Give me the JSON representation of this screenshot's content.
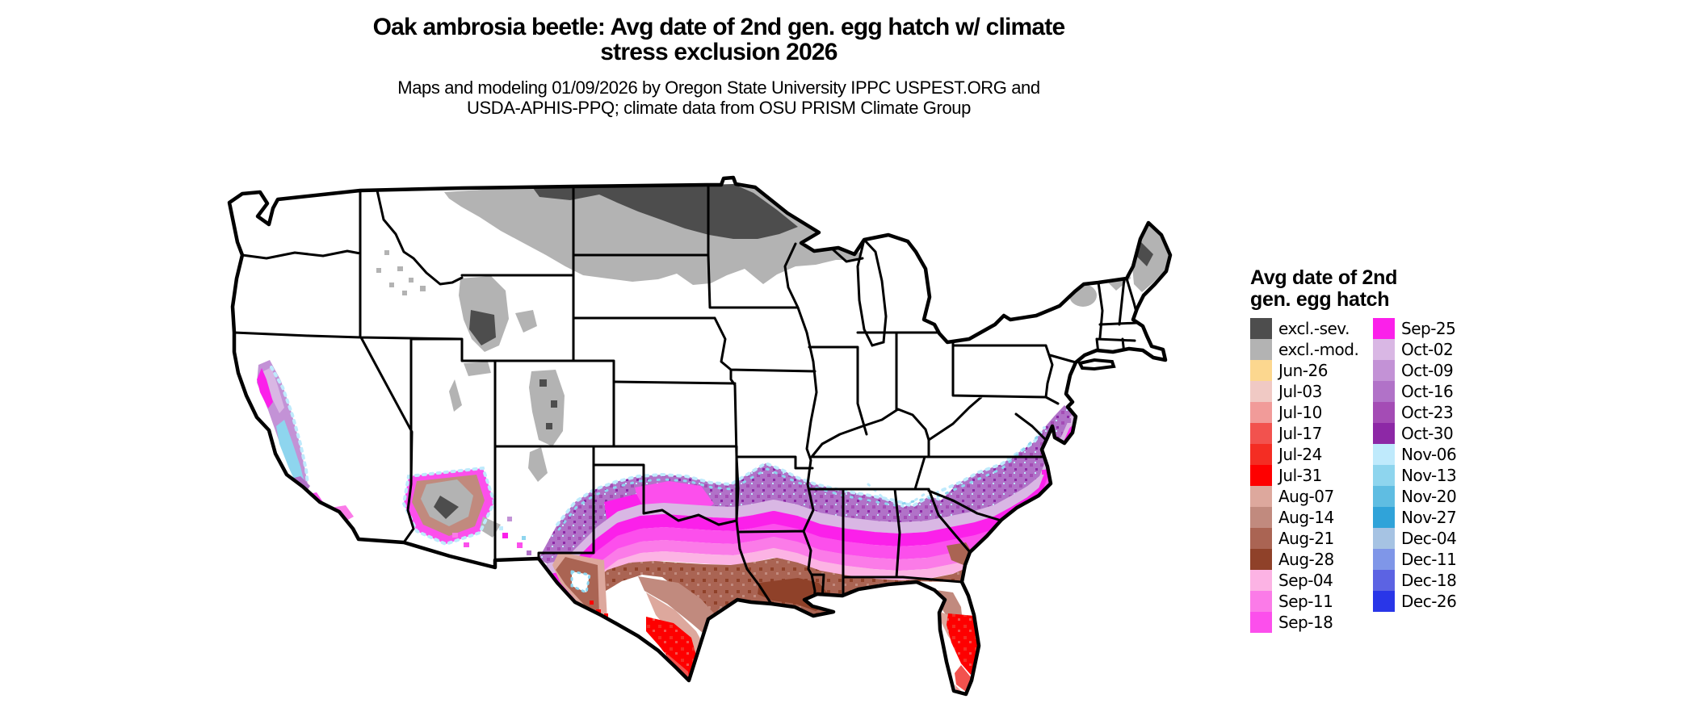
{
  "title": {
    "line1": "Oak ambrosia beetle: Avg date of 2nd gen. egg hatch w/ climate",
    "line2": "stress exclusion 2026"
  },
  "subtitle": {
    "line1": "Maps and modeling 01/09/2026 by Oregon State University IPPC USPEST.ORG and",
    "line2": "USDA-APHIS-PPQ; climate data from OSU PRISM Climate Group"
  },
  "legend": {
    "title_line1": "Avg date of 2nd",
    "title_line2": "gen. egg hatch",
    "left": [
      {
        "label": "excl.-sev.",
        "key": "excl_sev"
      },
      {
        "label": "excl.-mod.",
        "key": "excl_mod"
      },
      {
        "label": "Jun-26",
        "key": "jun26"
      },
      {
        "label": "Jul-03",
        "key": "jul03"
      },
      {
        "label": "Jul-10",
        "key": "jul10"
      },
      {
        "label": "Jul-17",
        "key": "jul17"
      },
      {
        "label": "Jul-24",
        "key": "jul24"
      },
      {
        "label": "Jul-31",
        "key": "jul31"
      },
      {
        "label": "Aug-07",
        "key": "aug07"
      },
      {
        "label": "Aug-14",
        "key": "aug14"
      },
      {
        "label": "Aug-21",
        "key": "aug21"
      },
      {
        "label": "Aug-28",
        "key": "aug28"
      },
      {
        "label": "Sep-04",
        "key": "sep04"
      },
      {
        "label": "Sep-11",
        "key": "sep11"
      },
      {
        "label": "Sep-18",
        "key": "sep18"
      }
    ],
    "right": [
      {
        "label": "Sep-25",
        "key": "sep25"
      },
      {
        "label": "Oct-02",
        "key": "oct02"
      },
      {
        "label": "Oct-09",
        "key": "oct09"
      },
      {
        "label": "Oct-16",
        "key": "oct16"
      },
      {
        "label": "Oct-23",
        "key": "oct23"
      },
      {
        "label": "Oct-30",
        "key": "oct30"
      },
      {
        "label": "Nov-06",
        "key": "nov06"
      },
      {
        "label": "Nov-13",
        "key": "nov13"
      },
      {
        "label": "Nov-20",
        "key": "nov20"
      },
      {
        "label": "Nov-27",
        "key": "nov27"
      },
      {
        "label": "Dec-04",
        "key": "dec04"
      },
      {
        "label": "Dec-11",
        "key": "dec11"
      },
      {
        "label": "Dec-18",
        "key": "dec18"
      },
      {
        "label": "Dec-26",
        "key": "dec26"
      }
    ]
  },
  "colors": {
    "excl_sev": "#4d4d4d",
    "excl_mod": "#b3b3b3",
    "jun26": "#fcd78f",
    "jul03": "#f0c9c4",
    "jul10": "#f19b99",
    "jul17": "#f2524e",
    "jul24": "#f42d23",
    "jul31": "#fe0000",
    "aug07": "#dda89d",
    "aug14": "#c18a7e",
    "aug21": "#aa6453",
    "aug28": "#8f4129",
    "sep04": "#fcb3e4",
    "sep11": "#fb7be8",
    "sep18": "#fc4fec",
    "sep25": "#fb20ea",
    "oct02": "#d9b7e4",
    "oct09": "#c392d6",
    "oct16": "#b172c8",
    "oct23": "#a44cb5",
    "oct30": "#8d28a6",
    "nov06": "#bfeafc",
    "nov13": "#8ed5ee",
    "nov20": "#5fbde2",
    "nov27": "#30a3d9",
    "dec04": "#a6c3e3",
    "dec11": "#7f96e8",
    "dec18": "#5c63e3",
    "dec26": "#2936e8",
    "map_background": "#ffffff",
    "border": "#000000"
  }
}
